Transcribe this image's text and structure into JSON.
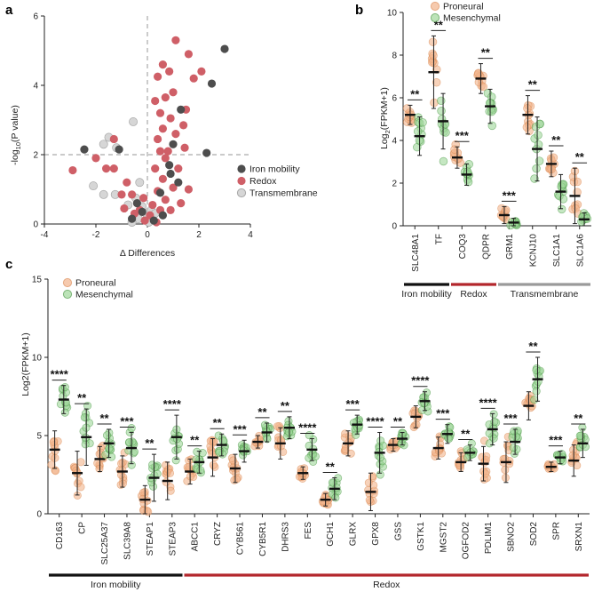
{
  "panels": {
    "a": "a",
    "b": "b",
    "c": "c"
  },
  "chart_data": [
    {
      "type": "scatter",
      "panel": "a",
      "xlabel": "Δ Differences",
      "ylabel": "-log10(P value)",
      "xlim": [
        -4,
        4
      ],
      "ylim": [
        0,
        6
      ],
      "xticks": [
        "-4",
        "-2",
        "0",
        "2",
        "4"
      ],
      "yticks": [
        "0",
        "2",
        "4",
        "6"
      ],
      "threshold_y": 2,
      "legend": [
        "Iron mobility",
        "Redox",
        "Transmembrane"
      ],
      "colors": {
        "Iron mobility": "#4d4d4d",
        "Redox": "#cf5f67",
        "Transmembrane": "#d6d6d6"
      },
      "points": [
        {
          "x": 3.0,
          "y": 5.05,
          "g": "Iron mobility"
        },
        {
          "x": 2.5,
          "y": 4.05,
          "g": "Iron mobility"
        },
        {
          "x": 2.3,
          "y": 2.05,
          "g": "Iron mobility"
        },
        {
          "x": -2.45,
          "y": 2.15,
          "g": "Iron mobility"
        },
        {
          "x": -1.1,
          "y": 2.15,
          "g": "Iron mobility"
        },
        {
          "x": 1.3,
          "y": 3.3,
          "g": "Iron mobility"
        },
        {
          "x": 1.0,
          "y": 2.3,
          "g": "Iron mobility"
        },
        {
          "x": 0.9,
          "y": 1.45,
          "g": "Iron mobility"
        },
        {
          "x": 1.2,
          "y": 1.2,
          "g": "Iron mobility"
        },
        {
          "x": 0.5,
          "y": 0.9,
          "g": "Iron mobility"
        },
        {
          "x": -0.4,
          "y": 0.6,
          "g": "Iron mobility"
        },
        {
          "x": 0.6,
          "y": 0.25,
          "g": "Iron mobility"
        },
        {
          "x": -0.2,
          "y": 0.35,
          "g": "Iron mobility"
        },
        {
          "x": 0.25,
          "y": 0.1,
          "g": "Iron mobility"
        },
        {
          "x": 0.85,
          "y": 1.7,
          "g": "Iron mobility"
        },
        {
          "x": -0.6,
          "y": 0.15,
          "g": "Iron mobility"
        },
        {
          "x": 1.1,
          "y": 5.3,
          "g": "Redox"
        },
        {
          "x": 1.6,
          "y": 4.9,
          "g": "Redox"
        },
        {
          "x": 2.1,
          "y": 4.4,
          "g": "Redox"
        },
        {
          "x": 1.8,
          "y": 4.2,
          "g": "Redox"
        },
        {
          "x": 0.85,
          "y": 4.4,
          "g": "Redox"
        },
        {
          "x": 0.6,
          "y": 4.6,
          "g": "Redox"
        },
        {
          "x": 0.4,
          "y": 4.25,
          "g": "Redox"
        },
        {
          "x": 1.0,
          "y": 3.8,
          "g": "Redox"
        },
        {
          "x": 0.7,
          "y": 3.65,
          "g": "Redox"
        },
        {
          "x": 0.3,
          "y": 3.55,
          "g": "Redox"
        },
        {
          "x": 1.5,
          "y": 3.3,
          "g": "Redox"
        },
        {
          "x": 0.5,
          "y": 3.2,
          "g": "Redox"
        },
        {
          "x": 0.9,
          "y": 3.05,
          "g": "Redox"
        },
        {
          "x": 1.4,
          "y": 2.85,
          "g": "Redox"
        },
        {
          "x": 0.6,
          "y": 2.75,
          "g": "Redox"
        },
        {
          "x": 1.1,
          "y": 2.6,
          "g": "Redox"
        },
        {
          "x": 0.4,
          "y": 2.45,
          "g": "Redox"
        },
        {
          "x": 0.8,
          "y": 2.1,
          "g": "Redox"
        },
        {
          "x": 1.45,
          "y": 2.2,
          "g": "Redox"
        },
        {
          "x": -1.3,
          "y": 1.6,
          "g": "Redox"
        },
        {
          "x": -2.9,
          "y": 1.55,
          "g": "Redox"
        },
        {
          "x": -2.0,
          "y": 1.9,
          "g": "Redox"
        },
        {
          "x": -1.6,
          "y": 1.6,
          "g": "Redox"
        },
        {
          "x": -1.3,
          "y": 2.45,
          "g": "Redox"
        },
        {
          "x": -0.8,
          "y": 1.2,
          "g": "Redox"
        },
        {
          "x": -1.0,
          "y": 0.85,
          "g": "Redox"
        },
        {
          "x": -0.6,
          "y": 0.85,
          "g": "Redox"
        },
        {
          "x": 0.3,
          "y": 1.6,
          "g": "Redox"
        },
        {
          "x": 0.6,
          "y": 1.3,
          "g": "Redox"
        },
        {
          "x": 1.0,
          "y": 1.05,
          "g": "Redox"
        },
        {
          "x": 0.4,
          "y": 0.95,
          "g": "Redox"
        },
        {
          "x": 0.7,
          "y": 0.7,
          "g": "Redox"
        },
        {
          "x": 0.2,
          "y": 0.55,
          "g": "Redox"
        },
        {
          "x": 0.5,
          "y": 0.4,
          "g": "Redox"
        },
        {
          "x": 0.9,
          "y": 0.4,
          "g": "Redox"
        },
        {
          "x": -0.3,
          "y": 0.4,
          "g": "Redox"
        },
        {
          "x": 0.1,
          "y": 0.25,
          "g": "Redox"
        },
        {
          "x": -0.1,
          "y": 0.1,
          "g": "Redox"
        },
        {
          "x": 0.35,
          "y": 0.05,
          "g": "Redox"
        },
        {
          "x": 1.3,
          "y": 0.6,
          "g": "Redox"
        },
        {
          "x": -0.5,
          "y": 0.3,
          "g": "Redox"
        },
        {
          "x": 0.7,
          "y": 1.9,
          "g": "Redox"
        },
        {
          "x": 1.2,
          "y": 1.6,
          "g": "Redox"
        },
        {
          "x": 0.5,
          "y": 2.1,
          "g": "Redox"
        },
        {
          "x": -0.15,
          "y": 0.75,
          "g": "Redox"
        },
        {
          "x": -0.9,
          "y": 0.45,
          "g": "Redox"
        },
        {
          "x": 1.6,
          "y": 1.0,
          "g": "Redox"
        },
        {
          "x": -1.5,
          "y": 2.5,
          "g": "Transmembrane"
        },
        {
          "x": -1.7,
          "y": 2.3,
          "g": "Transmembrane"
        },
        {
          "x": -0.55,
          "y": 2.95,
          "g": "Transmembrane"
        },
        {
          "x": -2.1,
          "y": 1.1,
          "g": "Transmembrane"
        },
        {
          "x": -1.7,
          "y": 0.85,
          "g": "Transmembrane"
        },
        {
          "x": -1.25,
          "y": 0.85,
          "g": "Transmembrane"
        },
        {
          "x": -1.2,
          "y": 2.2,
          "g": "Transmembrane"
        },
        {
          "x": -0.3,
          "y": 1.2,
          "g": "Transmembrane"
        },
        {
          "x": -0.75,
          "y": 0.55,
          "g": "Transmembrane"
        },
        {
          "x": -0.45,
          "y": 0.75,
          "g": "Transmembrane"
        },
        {
          "x": -0.2,
          "y": 0.5,
          "g": "Transmembrane"
        },
        {
          "x": -0.05,
          "y": 0.3,
          "g": "Transmembrane"
        },
        {
          "x": 0.15,
          "y": 0.4,
          "g": "Transmembrane"
        },
        {
          "x": -0.35,
          "y": 0.15,
          "g": "Transmembrane"
        },
        {
          "x": 0.05,
          "y": 0.05,
          "g": "Transmembrane"
        },
        {
          "x": 0.3,
          "y": 0.3,
          "g": "Transmembrane"
        },
        {
          "x": -0.6,
          "y": 0.05,
          "g": "Transmembrane"
        }
      ]
    },
    {
      "type": "scatter",
      "panel": "b",
      "ylabel": "Log2(FPKM+1)",
      "ylim": [
        0,
        10
      ],
      "yticks": [
        "0",
        "2",
        "4",
        "6",
        "8",
        "10"
      ],
      "legend": [
        "Proneural",
        "Mesenchymal"
      ],
      "colors": {
        "Proneural": "#f2b48c",
        "Mesenchymal": "#9fd79a",
        "Proneural_mean": "#d9864e",
        "Mesenchymal_mean": "#3f8f3a"
      },
      "categories": [
        "SLC48A1",
        "TF",
        "COQ3",
        "QDPR",
        "GRM1",
        "KCNJ10",
        "SLC1A1",
        "SLC1A6"
      ],
      "series": [
        {
          "name": "Proneural",
          "mean": [
            5.2,
            7.2,
            3.2,
            6.9,
            0.5,
            5.2,
            2.9,
            1.4
          ],
          "sd": [
            0.45,
            1.7,
            0.5,
            0.7,
            0.4,
            0.9,
            0.6,
            1.3
          ]
        },
        {
          "name": "Mesenchymal",
          "mean": [
            4.2,
            4.9,
            2.4,
            5.6,
            0.15,
            3.6,
            1.6,
            0.3
          ],
          "sd": [
            0.9,
            1.3,
            0.5,
            0.8,
            0.2,
            1.5,
            0.8,
            0.3
          ]
        }
      ],
      "significance": [
        "**",
        "**",
        "***",
        "**",
        "***",
        "**",
        "**",
        "**"
      ],
      "groups": [
        {
          "label": "Iron mobility",
          "from": 0,
          "to": 1,
          "color": "#111111"
        },
        {
          "label": "Redox",
          "from": 2,
          "to": 3,
          "color": "#b3262c"
        },
        {
          "label": "Transmembrane",
          "from": 4,
          "to": 7,
          "color": "#9a9a9a"
        }
      ]
    },
    {
      "type": "scatter",
      "panel": "c",
      "ylabel": "Log2(FPKM+1)",
      "ylim": [
        0,
        15
      ],
      "yticks": [
        "0",
        "5",
        "10",
        "15"
      ],
      "legend": [
        "Proneural",
        "Mesenchymal"
      ],
      "colors": {
        "Proneural": "#f2b48c",
        "Mesenchymal": "#9fd79a",
        "Proneural_mean": "#d9864e",
        "Mesenchymal_mean": "#3f8f3a"
      },
      "categories": [
        "CD163",
        "CP",
        "SLC25A37",
        "SLC39A8",
        "STEAP1",
        "STEAP3",
        "ABCC1",
        "CRYZ",
        "CYB561",
        "CYB5R1",
        "DHRS3",
        "FES",
        "GCH1",
        "GLRX",
        "GPX8",
        "GSS",
        "GSTK1",
        "MGST2",
        "OGFOD2",
        "PDLIM1",
        "SBNO2",
        "SOD2",
        "SPR",
        "SRXN1"
      ],
      "series": [
        {
          "name": "Proneural",
          "mean": [
            4.1,
            2.6,
            3.5,
            2.7,
            0.9,
            2.1,
            2.7,
            3.6,
            2.9,
            4.6,
            4.5,
            2.6,
            0.9,
            4.5,
            1.4,
            4.4,
            6.2,
            4.2,
            3.3,
            3.2,
            3.3,
            6.9,
            3.0,
            3.4
          ],
          "sd": [
            1.2,
            1.4,
            0.8,
            1.0,
            0.9,
            1.2,
            0.8,
            1.2,
            0.9,
            0.4,
            1.0,
            0.4,
            0.4,
            0.8,
            1.2,
            0.4,
            0.7,
            0.7,
            0.6,
            1.1,
            1.3,
            0.9,
            0.3,
            1.0
          ]
        },
        {
          "name": "Mesenchymal",
          "mean": [
            7.3,
            4.9,
            4.5,
            4.2,
            2.3,
            4.9,
            3.3,
            4.4,
            4.0,
            5.2,
            5.5,
            4.1,
            1.6,
            5.7,
            3.9,
            4.8,
            7.2,
            5.1,
            3.9,
            5.4,
            4.6,
            8.6,
            3.6,
            4.5
          ],
          "sd": [
            0.9,
            1.8,
            0.9,
            1.0,
            1.5,
            1.4,
            0.7,
            0.7,
            0.7,
            0.6,
            0.7,
            0.7,
            0.7,
            0.6,
            1.3,
            0.4,
            0.6,
            0.6,
            0.5,
            1.0,
            0.8,
            1.4,
            0.4,
            0.9
          ]
        }
      ],
      "significance": [
        "****",
        "**",
        "**",
        "***",
        "**",
        "****",
        "**",
        "**",
        "***",
        "**",
        "**",
        "****",
        "**",
        "***",
        "****",
        "**",
        "****",
        "***",
        "**",
        "****",
        "***",
        "**",
        "***",
        "**"
      ],
      "groups": [
        {
          "label": "Iron mobility",
          "from": 0,
          "to": 5,
          "color": "#111111"
        },
        {
          "label": "Redox",
          "from": 6,
          "to": 23,
          "color": "#b3262c"
        }
      ]
    }
  ]
}
